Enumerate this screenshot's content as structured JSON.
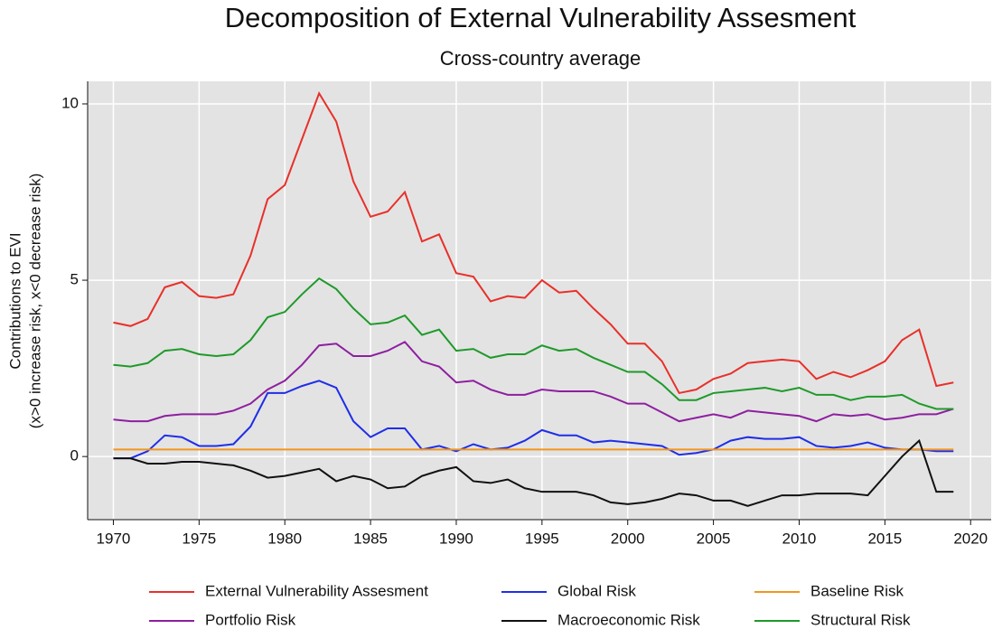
{
  "chart_data": {
    "type": "line",
    "title": "Decomposition of External Vulnerability Assesment",
    "subtitle": "Cross-country average",
    "ylabel": [
      "Contributions to EVI",
      "(x>0 increase risk, x<0 decrease risk)"
    ],
    "x": [
      1970,
      1971,
      1972,
      1973,
      1974,
      1975,
      1976,
      1977,
      1978,
      1979,
      1980,
      1981,
      1982,
      1983,
      1984,
      1985,
      1986,
      1987,
      1988,
      1989,
      1990,
      1991,
      1992,
      1993,
      1994,
      1995,
      1996,
      1997,
      1998,
      1999,
      2000,
      2001,
      2002,
      2003,
      2004,
      2005,
      2006,
      2007,
      2008,
      2009,
      2010,
      2011,
      2012,
      2013,
      2014,
      2015,
      2016,
      2017,
      2018,
      2019
    ],
    "xlim": [
      1968.5,
      2021.2
    ],
    "xticks": [
      1970,
      1975,
      1980,
      1985,
      1990,
      1995,
      2000,
      2005,
      2010,
      2015,
      2020
    ],
    "ylim": [
      -1.79,
      10.64
    ],
    "yticks": [
      0,
      5,
      10
    ],
    "grid": true,
    "legend": "bottom",
    "series": [
      {
        "name": "External Vulnerability Assesment",
        "color": "#e8302a",
        "values": [
          3.8,
          3.7,
          3.9,
          4.8,
          4.95,
          4.55,
          4.5,
          4.6,
          5.7,
          7.3,
          7.7,
          9.0,
          10.3,
          9.5,
          7.8,
          6.8,
          6.95,
          7.5,
          6.1,
          6.3,
          5.2,
          5.1,
          4.4,
          4.55,
          4.5,
          5.0,
          4.65,
          4.7,
          4.2,
          3.75,
          3.2,
          3.2,
          2.7,
          1.8,
          1.9,
          2.2,
          2.35,
          2.65,
          2.7,
          2.75,
          2.7,
          2.2,
          2.4,
          2.25,
          2.45,
          2.7,
          3.3,
          3.6,
          2.0,
          2.1
        ]
      },
      {
        "name": "Global Risk",
        "color": "#1f2ee8",
        "values": [
          -0.05,
          -0.05,
          0.15,
          0.6,
          0.55,
          0.3,
          0.3,
          0.35,
          0.85,
          1.8,
          1.8,
          2.0,
          2.15,
          1.95,
          1.0,
          0.55,
          0.8,
          0.8,
          0.2,
          0.3,
          0.15,
          0.35,
          0.2,
          0.25,
          0.45,
          0.75,
          0.6,
          0.6,
          0.4,
          0.45,
          0.4,
          0.35,
          0.3,
          0.05,
          0.1,
          0.2,
          0.45,
          0.55,
          0.5,
          0.5,
          0.55,
          0.3,
          0.25,
          0.3,
          0.4,
          0.25,
          0.2,
          0.2,
          0.15,
          0.15
        ]
      },
      {
        "name": "Baseline Risk",
        "color": "#f0961e",
        "values": [
          0.2,
          0.2,
          0.2,
          0.2,
          0.2,
          0.2,
          0.2,
          0.2,
          0.2,
          0.2,
          0.2,
          0.2,
          0.2,
          0.2,
          0.2,
          0.2,
          0.2,
          0.2,
          0.2,
          0.2,
          0.2,
          0.2,
          0.2,
          0.2,
          0.2,
          0.2,
          0.2,
          0.2,
          0.2,
          0.2,
          0.2,
          0.2,
          0.2,
          0.2,
          0.2,
          0.2,
          0.2,
          0.2,
          0.2,
          0.2,
          0.2,
          0.2,
          0.2,
          0.2,
          0.2,
          0.2,
          0.2,
          0.2,
          0.2,
          0.2
        ]
      },
      {
        "name": "Portfolio Risk",
        "color": "#8e1fa0",
        "values": [
          1.05,
          1.0,
          1.0,
          1.15,
          1.2,
          1.2,
          1.2,
          1.3,
          1.5,
          1.9,
          2.15,
          2.6,
          3.15,
          3.2,
          2.85,
          2.85,
          3.0,
          3.25,
          2.7,
          2.55,
          2.1,
          2.15,
          1.9,
          1.75,
          1.75,
          1.9,
          1.85,
          1.85,
          1.85,
          1.7,
          1.5,
          1.5,
          1.25,
          1.0,
          1.1,
          1.2,
          1.1,
          1.3,
          1.25,
          1.2,
          1.15,
          1.0,
          1.2,
          1.15,
          1.2,
          1.05,
          1.1,
          1.2,
          1.2,
          1.35
        ]
      },
      {
        "name": "Macroeconomic Risk",
        "color": "#111111",
        "values": [
          -0.05,
          -0.05,
          -0.2,
          -0.2,
          -0.15,
          -0.15,
          -0.2,
          -0.25,
          -0.4,
          -0.6,
          -0.55,
          -0.45,
          -0.35,
          -0.7,
          -0.55,
          -0.65,
          -0.9,
          -0.85,
          -0.55,
          -0.4,
          -0.3,
          -0.7,
          -0.75,
          -0.65,
          -0.9,
          -1.0,
          -1.0,
          -1.0,
          -1.1,
          -1.3,
          -1.35,
          -1.3,
          -1.2,
          -1.05,
          -1.1,
          -1.25,
          -1.25,
          -1.4,
          -1.25,
          -1.1,
          -1.1,
          -1.05,
          -1.05,
          -1.05,
          -1.1,
          -0.55,
          0.0,
          0.45,
          -1.0,
          -1.0
        ]
      },
      {
        "name": "Structural Risk",
        "color": "#1e9a2a",
        "values": [
          2.6,
          2.55,
          2.65,
          3.0,
          3.05,
          2.9,
          2.85,
          2.9,
          3.3,
          3.95,
          4.1,
          4.6,
          5.05,
          4.75,
          4.2,
          3.75,
          3.8,
          4.0,
          3.45,
          3.6,
          3.0,
          3.05,
          2.8,
          2.9,
          2.9,
          3.15,
          3.0,
          3.05,
          2.8,
          2.6,
          2.4,
          2.4,
          2.05,
          1.6,
          1.6,
          1.8,
          1.85,
          1.9,
          1.95,
          1.85,
          1.95,
          1.75,
          1.75,
          1.6,
          1.7,
          1.7,
          1.75,
          1.5,
          1.35,
          1.35
        ]
      }
    ]
  }
}
